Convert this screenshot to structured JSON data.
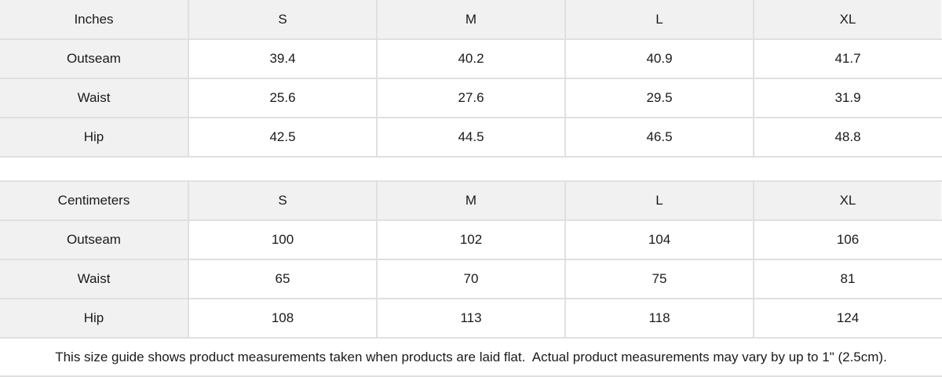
{
  "inches": {
    "unit_label": "Inches",
    "sizes": [
      "S",
      "M",
      "L",
      "XL"
    ],
    "rows": [
      {
        "label": "Outseam",
        "values": [
          "39.4",
          "40.2",
          "40.9",
          "41.7"
        ]
      },
      {
        "label": "Waist",
        "values": [
          "25.6",
          "27.6",
          "29.5",
          "31.9"
        ]
      },
      {
        "label": "Hip",
        "values": [
          "42.5",
          "44.5",
          "46.5",
          "48.8"
        ]
      }
    ]
  },
  "centimeters": {
    "unit_label": "Centimeters",
    "sizes": [
      "S",
      "M",
      "L",
      "XL"
    ],
    "rows": [
      {
        "label": "Outseam",
        "values": [
          "100",
          "102",
          "104",
          "106"
        ]
      },
      {
        "label": "Waist",
        "values": [
          "65",
          "70",
          "75",
          "81"
        ]
      },
      {
        "label": "Hip",
        "values": [
          "108",
          "113",
          "118",
          "124"
        ]
      }
    ]
  },
  "footer": {
    "note": "This size guide shows product measurements taken when products are laid flat.  Actual product measurements may vary by up to 1\" (2.5cm)."
  },
  "colors": {
    "header_bg": "#f1f1f1",
    "cell_bg": "#ffffff",
    "border": "#e0e0e0",
    "text": "#1a1a1a"
  }
}
